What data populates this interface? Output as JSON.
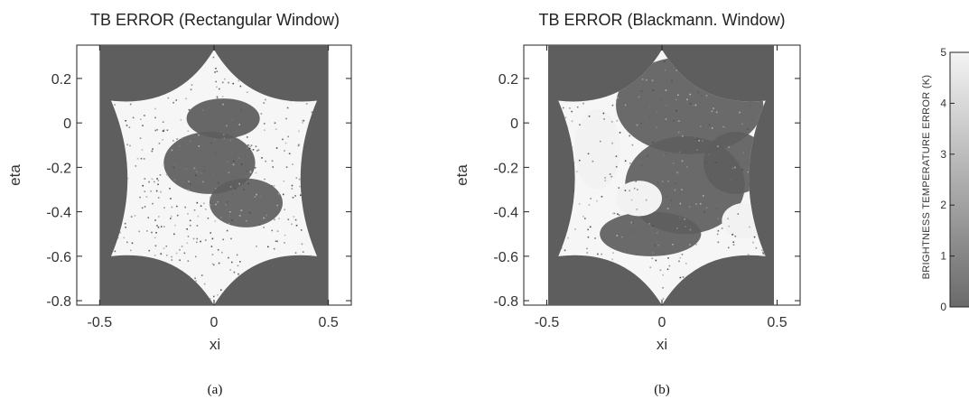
{
  "chart_data": [
    {
      "type": "heatmap",
      "title": "TB ERROR (Rectangular Window)",
      "xlabel": "xi",
      "ylabel": "eta",
      "caption": "(a)",
      "xlim": [
        -0.6,
        0.6
      ],
      "ylim": [
        -0.82,
        0.35
      ],
      "xticks": [
        "-0.5",
        "0",
        "0.5"
      ],
      "xtick_values": [
        -0.5,
        0,
        0.5
      ],
      "yticks": [
        "0.2",
        "0",
        "-0.2",
        "-0.4",
        "-0.6",
        "-0.8"
      ],
      "ytick_values": [
        0.2,
        0,
        -0.2,
        -0.4,
        -0.6,
        -0.8
      ],
      "colorscale": "gray",
      "outside_color": "#5e5e5e",
      "error_regions": [
        {
          "cx": -0.02,
          "cy": -0.18,
          "rx": 0.2,
          "ry": 0.14,
          "level": 0.35
        },
        {
          "cx": 0.14,
          "cy": -0.36,
          "rx": 0.16,
          "ry": 0.11,
          "level": 0.4
        },
        {
          "cx": 0.04,
          "cy": 0.02,
          "rx": 0.16,
          "ry": 0.09,
          "level": 0.3
        }
      ],
      "background_level": 0.92,
      "grain": 0.42
    },
    {
      "type": "heatmap",
      "title": "TB ERROR (Blackmann. Window)",
      "xlabel": "xi",
      "ylabel": "eta",
      "caption": "(b)",
      "xlim": [
        -0.6,
        0.6
      ],
      "ylim": [
        -0.82,
        0.35
      ],
      "xticks": [
        "-0.5",
        "0",
        "0.5"
      ],
      "xtick_values": [
        -0.5,
        0,
        0.5
      ],
      "yticks": [
        "0.2",
        "0",
        "-0.2",
        "-0.4",
        "-0.6",
        "-0.8"
      ],
      "ytick_values": [
        0.2,
        0,
        -0.2,
        -0.4,
        -0.6,
        -0.8
      ],
      "colorscale": "gray",
      "outside_color": "#5e5e5e",
      "error_regions": [
        {
          "cx": 0.12,
          "cy": 0.08,
          "rx": 0.32,
          "ry": 0.22,
          "level": 0.38
        },
        {
          "cx": 0.1,
          "cy": -0.28,
          "rx": 0.26,
          "ry": 0.22,
          "level": 0.38
        },
        {
          "cx": 0.32,
          "cy": -0.18,
          "rx": 0.14,
          "ry": 0.14,
          "level": 0.38
        },
        {
          "cx": -0.05,
          "cy": -0.5,
          "rx": 0.22,
          "ry": 0.1,
          "level": 0.38
        }
      ],
      "clear_regions": [
        {
          "cx": 0.36,
          "cy": -0.44,
          "rx": 0.1,
          "ry": 0.08
        },
        {
          "cx": -0.1,
          "cy": -0.34,
          "rx": 0.1,
          "ry": 0.08
        },
        {
          "cx": -0.28,
          "cy": -0.12,
          "rx": 0.1,
          "ry": 0.18
        }
      ],
      "background_level": 0.95,
      "grain": 0.3
    }
  ],
  "colorbar": {
    "label": "BRIGHTNESS TEMPERATURE ERROR (K)",
    "ticks": [
      "0",
      "1",
      "2",
      "3",
      "4",
      "5"
    ],
    "tick_values": [
      0,
      1,
      2,
      3,
      4,
      5
    ],
    "range": [
      0,
      5
    ],
    "color_low": "#6a6a6a",
    "color_high": "#f4f4f4"
  }
}
